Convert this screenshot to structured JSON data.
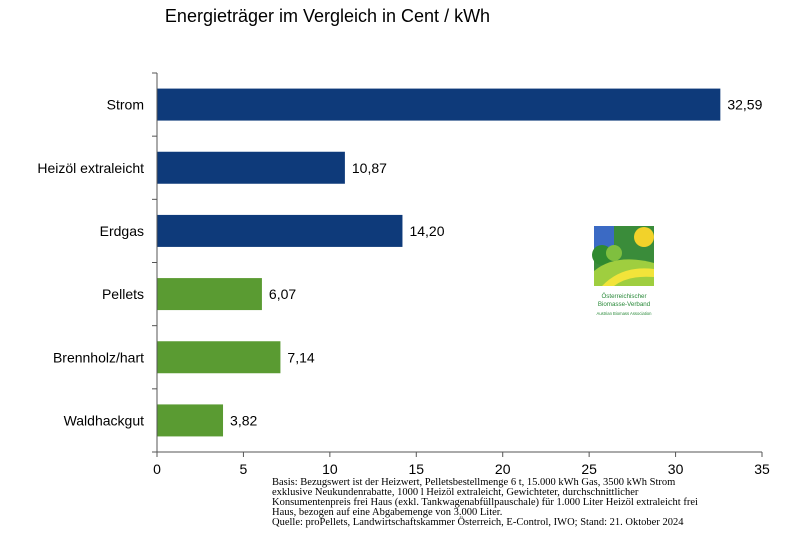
{
  "chart_data": {
    "type": "bar",
    "orientation": "horizontal",
    "title": "Energieträger im Vergleich in Cent / kWh",
    "categories": [
      "Strom",
      "Heizöl extraleicht",
      "Erdgas",
      "Pellets",
      "Brennholz/hart",
      "Waldhackgut"
    ],
    "values": [
      32.59,
      10.87,
      14.2,
      6.07,
      7.14,
      3.82
    ],
    "value_labels": [
      "32,59",
      "10,87",
      "14,20",
      "6,07",
      "7,14",
      "3,82"
    ],
    "bar_colors": [
      "#0e3a7a",
      "#0e3a7a",
      "#0e3a7a",
      "#5a9b32",
      "#5a9b32",
      "#5a9b32"
    ],
    "xlim": [
      0,
      35
    ],
    "xticks": [
      0,
      5,
      10,
      15,
      20,
      25,
      30,
      35
    ],
    "xlabel": "",
    "ylabel": "",
    "grid": false,
    "legend": "none"
  },
  "footnote": [
    "Basis: Bezugswert ist der Heizwert, Pelletsbestellmenge 6 t, 15.000 kWh Gas, 3500 kWh Strom",
    "exklusive Neukundenrabatte, 1000 l Heizöl extraleicht, Gewichteter, durchschnittlicher",
    "Konsumentenpreis frei Haus (exkl. Tankwagenabfüllpauschale) für 1.000 Liter Heizöl extraleicht frei",
    "Haus, bezogen auf eine Abgabemenge von 3.000 Liter.",
    "Quelle: proPellets, Landwirtschaftskammer Österreich, E-Control, IWO; Stand: 21. Oktober 2024"
  ],
  "logo": {
    "line1": "Österreichischer",
    "line2": "Biomasse-Verband",
    "line3": "Austrian Biomass Association"
  }
}
